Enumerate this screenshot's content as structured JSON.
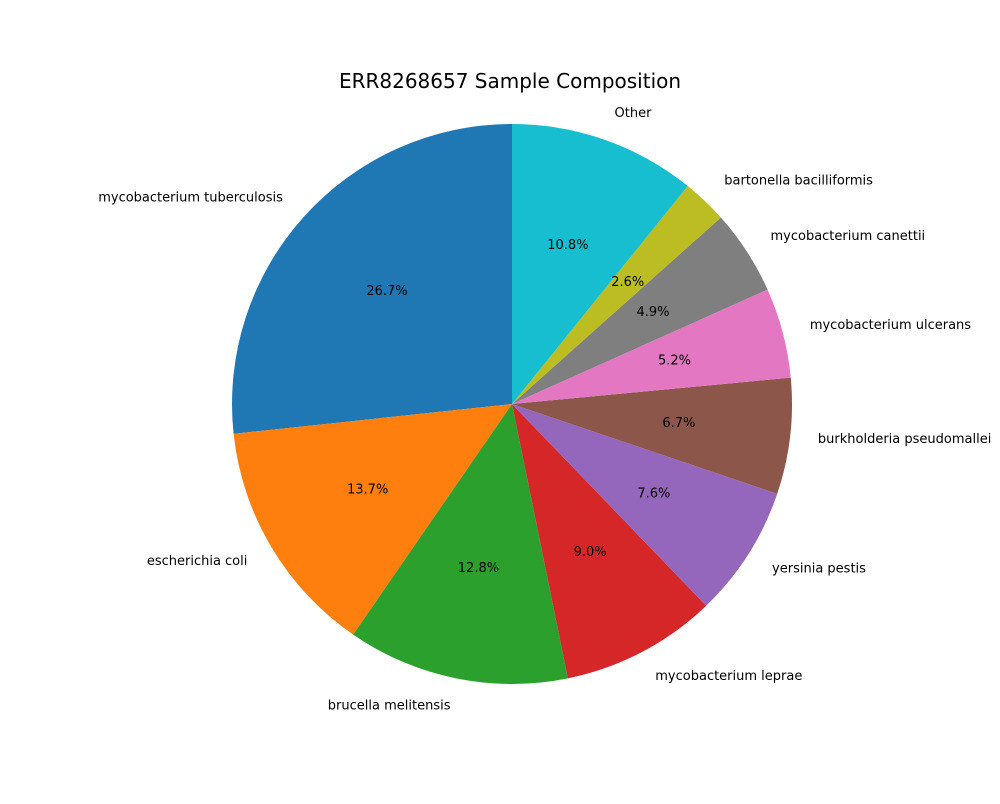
{
  "chart_data": {
    "type": "pie",
    "title": "ERR8268657 Sample Composition",
    "start_angle_deg": 90,
    "direction": "counterclockwise",
    "slices": [
      {
        "label": "mycobacterium tuberculosis",
        "value": 26.7,
        "pct_label": "26.7%",
        "color": "#1f77b4"
      },
      {
        "label": "escherichia coli",
        "value": 13.7,
        "pct_label": "13.7%",
        "color": "#ff7f0e"
      },
      {
        "label": "brucella melitensis",
        "value": 12.8,
        "pct_label": "12.8%",
        "color": "#2ca02c"
      },
      {
        "label": "mycobacterium leprae",
        "value": 9.0,
        "pct_label": "9.0%",
        "color": "#d62728"
      },
      {
        "label": "yersinia pestis",
        "value": 7.6,
        "pct_label": "7.6%",
        "color": "#9467bd"
      },
      {
        "label": "burkholderia pseudomallei",
        "value": 6.7,
        "pct_label": "6.7%",
        "color": "#8c564b"
      },
      {
        "label": "mycobacterium ulcerans",
        "value": 5.2,
        "pct_label": "5.2%",
        "color": "#e377c2"
      },
      {
        "label": "mycobacterium canettii",
        "value": 4.9,
        "pct_label": "4.9%",
        "color": "#7f7f7f"
      },
      {
        "label": "bartonella bacilliformis",
        "value": 2.6,
        "pct_label": "2.6%",
        "color": "#bcbd22"
      },
      {
        "label": "Other",
        "value": 10.8,
        "pct_label": "10.8%",
        "color": "#17becf"
      }
    ]
  }
}
